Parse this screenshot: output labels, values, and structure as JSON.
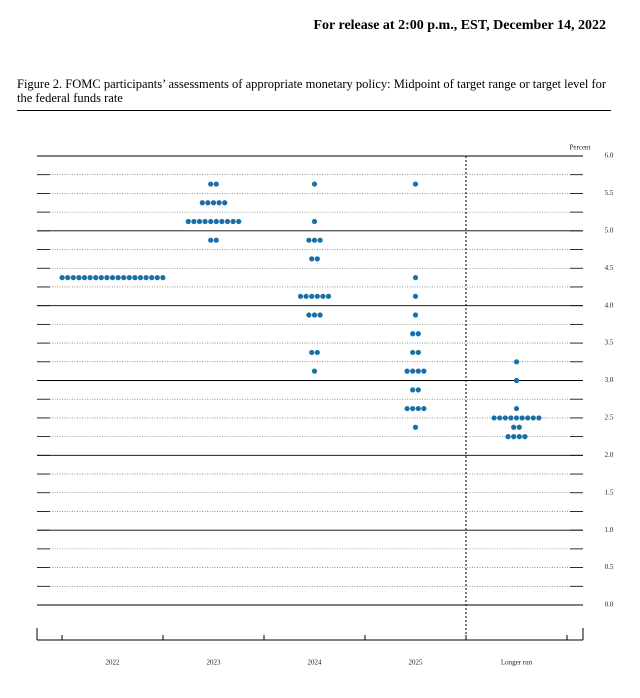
{
  "release": "For release at 2:00 p.m., EST, December 14, 2022",
  "chart_data": {
    "type": "dot",
    "title": "Figure 2.  FOMC participants’ assessments of appropriate monetary policy: Midpoint of target range or target level for the federal funds rate",
    "y_label": "Percent",
    "color": "#1b6fa8",
    "categories": [
      "2022",
      "2023",
      "2024",
      "2025",
      "Longer run"
    ],
    "dots": [
      [
        {
          "value": 4.375,
          "count": 19
        }
      ],
      [
        {
          "value": 5.625,
          "count": 2
        },
        {
          "value": 5.375,
          "count": 5
        },
        {
          "value": 5.125,
          "count": 10
        },
        {
          "value": 4.875,
          "count": 2
        }
      ],
      [
        {
          "value": 5.625,
          "count": 1
        },
        {
          "value": 5.125,
          "count": 1
        },
        {
          "value": 4.875,
          "count": 3
        },
        {
          "value": 4.625,
          "count": 2
        },
        {
          "value": 4.125,
          "count": 6
        },
        {
          "value": 3.875,
          "count": 3
        },
        {
          "value": 3.375,
          "count": 2
        },
        {
          "value": 3.125,
          "count": 1
        }
      ],
      [
        {
          "value": 5.625,
          "count": 1
        },
        {
          "value": 4.375,
          "count": 1
        },
        {
          "value": 4.125,
          "count": 1
        },
        {
          "value": 3.875,
          "count": 1
        },
        {
          "value": 3.625,
          "count": 2
        },
        {
          "value": 3.375,
          "count": 2
        },
        {
          "value": 3.125,
          "count": 4
        },
        {
          "value": 2.875,
          "count": 2
        },
        {
          "value": 2.625,
          "count": 4
        },
        {
          "value": 2.375,
          "count": 1
        }
      ],
      [
        {
          "value": 3.25,
          "count": 1
        },
        {
          "value": 3.0,
          "count": 1
        },
        {
          "value": 2.625,
          "count": 1
        },
        {
          "value": 2.5,
          "count": 9
        },
        {
          "value": 2.375,
          "count": 2
        },
        {
          "value": 2.25,
          "count": 4
        }
      ]
    ],
    "ylim": [
      0,
      6
    ],
    "yticks": [
      {
        "value": 0,
        "label": "0.0"
      },
      {
        "value": 0.5,
        "label": "0.5"
      },
      {
        "value": 1,
        "label": "1.0"
      },
      {
        "value": 1.5,
        "label": "1.5"
      },
      {
        "value": 2,
        "label": "2.0"
      },
      {
        "value": 2.5,
        "label": "2.5"
      },
      {
        "value": 3,
        "label": "3.0"
      },
      {
        "value": 3.5,
        "label": "3.5"
      },
      {
        "value": 4,
        "label": "4.0"
      },
      {
        "value": 4.5,
        "label": "4.5"
      },
      {
        "value": 5,
        "label": "5.0"
      },
      {
        "value": 5.5,
        "label": "5.5"
      },
      {
        "value": 6,
        "label": "6.0"
      }
    ],
    "minor_ticks": [
      0.25,
      0.75,
      1.25,
      1.75,
      2.25,
      2.75,
      3.25,
      3.75,
      4.25,
      4.75,
      5.25,
      5.75
    ],
    "grid": true
  }
}
